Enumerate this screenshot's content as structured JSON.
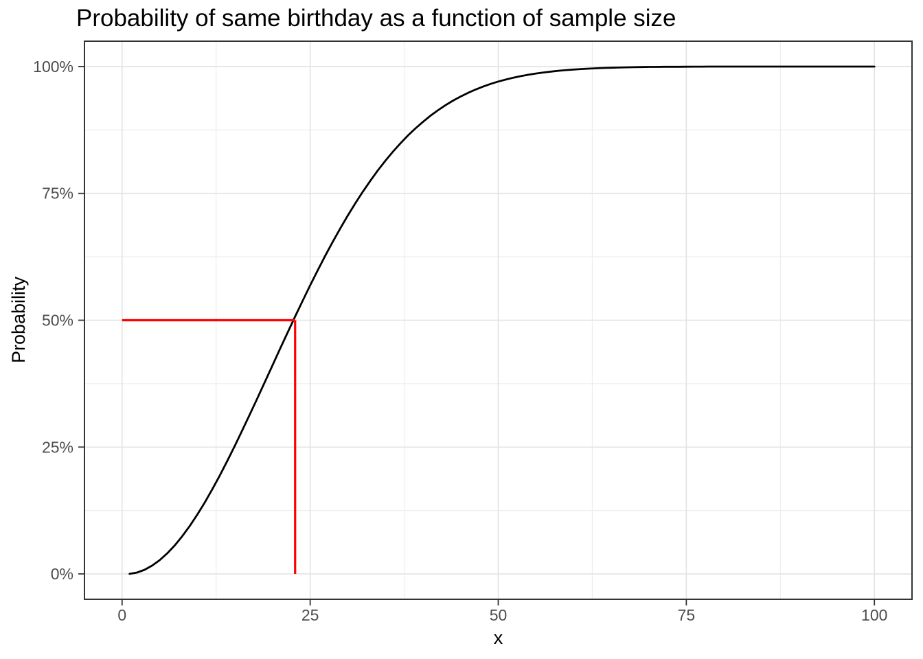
{
  "page": {
    "background": "#FFFFFF"
  },
  "chart_data": {
    "type": "line",
    "title": "Probability of same birthday as a function of sample size",
    "xlabel": "x",
    "ylabel": "Probability",
    "xlim": [
      -5,
      105
    ],
    "ylim": [
      -0.05,
      1.05
    ],
    "grid": true,
    "legend": "none",
    "x_ticks": [
      0,
      25,
      50,
      75,
      100
    ],
    "x_tick_labels": [
      "0",
      "25",
      "50",
      "75",
      "100"
    ],
    "x_minor_ticks": [
      12.5,
      37.5,
      62.5,
      87.5
    ],
    "y_ticks": [
      0,
      0.25,
      0.5,
      0.75,
      1
    ],
    "y_tick_labels": [
      "0%",
      "25%",
      "50%",
      "75%",
      "100%"
    ],
    "y_minor_ticks": [
      0.125,
      0.375,
      0.625,
      0.875
    ],
    "series": [
      {
        "name": "birthday-probability-curve",
        "color": "#000000",
        "x": [
          1,
          2,
          3,
          4,
          5,
          6,
          7,
          8,
          9,
          10,
          11,
          12,
          13,
          14,
          15,
          16,
          17,
          18,
          19,
          20,
          21,
          22,
          23,
          24,
          25,
          26,
          27,
          28,
          29,
          30,
          31,
          32,
          33,
          34,
          35,
          36,
          37,
          38,
          39,
          40,
          41,
          42,
          43,
          44,
          45,
          46,
          47,
          48,
          49,
          50,
          51,
          52,
          53,
          54,
          55,
          56,
          57,
          58,
          59,
          60,
          61,
          62,
          63,
          64,
          65,
          66,
          67,
          68,
          69,
          70,
          71,
          72,
          73,
          74,
          75,
          76,
          77,
          78,
          79,
          80,
          81,
          82,
          83,
          84,
          85,
          86,
          87,
          88,
          89,
          90,
          91,
          92,
          93,
          94,
          95,
          96,
          97,
          98,
          99,
          100
        ],
        "y": [
          0.0,
          0.0027,
          0.0082,
          0.0164,
          0.0271,
          0.0405,
          0.0562,
          0.0743,
          0.0946,
          0.1169,
          0.1411,
          0.167,
          0.1944,
          0.2231,
          0.2529,
          0.2836,
          0.315,
          0.3469,
          0.3791,
          0.4114,
          0.4437,
          0.4757,
          0.5073,
          0.5383,
          0.5687,
          0.5982,
          0.6269,
          0.6545,
          0.681,
          0.7063,
          0.7305,
          0.7533,
          0.775,
          0.7953,
          0.8144,
          0.8322,
          0.8487,
          0.8641,
          0.8782,
          0.8912,
          0.9032,
          0.914,
          0.9239,
          0.9329,
          0.941,
          0.9483,
          0.9548,
          0.9606,
          0.9658,
          0.9704,
          0.9744,
          0.978,
          0.9811,
          0.9839,
          0.9863,
          0.9883,
          0.9901,
          0.9917,
          0.993,
          0.9941,
          0.9951,
          0.9959,
          0.9966,
          0.9972,
          0.9977,
          0.9981,
          0.9984,
          0.9987,
          0.999,
          0.9992,
          0.9993,
          0.9995,
          0.9996,
          0.9996,
          0.9997,
          0.9998,
          0.9998,
          0.9999,
          0.9999,
          0.9999,
          0.9999,
          0.9999,
          1,
          1,
          1,
          1,
          1,
          1,
          1,
          1,
          1,
          1,
          1,
          1,
          1,
          1,
          1,
          1,
          1,
          1
        ]
      }
    ],
    "annotations": [
      {
        "name": "reference-line-horizontal",
        "color": "#FF0000",
        "from": [
          0,
          0.5
        ],
        "to": [
          23,
          0.5
        ]
      },
      {
        "name": "reference-line-vertical",
        "color": "#FF0000",
        "from": [
          23,
          0.5
        ],
        "to": [
          23,
          0
        ]
      }
    ],
    "key_point": {
      "x": 23,
      "y": 0.5
    },
    "colors": {
      "curve": "#000000",
      "reference": "#FF0000",
      "grid_major": "#E3E3E3",
      "grid_minor": "#EDEDED",
      "panel_border": "#333333",
      "tick_mark": "#333333",
      "axis_text": "#4D4D4D",
      "title_text": "#000000",
      "panel_bg": "#FFFFFF"
    }
  }
}
